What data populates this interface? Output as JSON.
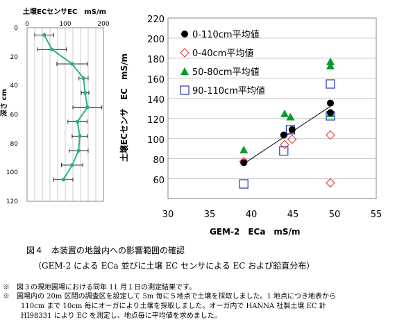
{
  "chart_data": [
    {
      "type": "line",
      "title": "土壌ECセンサEC　mS/m",
      "ylabel": "深さ cm",
      "x_ticks": [
        "0",
        "100",
        "200"
      ],
      "y_ticks": [
        "0",
        "20",
        "40",
        "60",
        "80",
        "100",
        "120"
      ],
      "xlim": [
        0,
        200
      ],
      "ylim": [
        0,
        120
      ],
      "y_inverted": true,
      "grid": "vertical",
      "series": [
        {
          "color": "#2db37a",
          "x": [
            45,
            65,
            118,
            148,
            152,
            158,
            132,
            138,
            135,
            118,
            95
          ],
          "y": [
            5,
            15,
            25,
            35,
            45,
            55,
            65,
            75,
            85,
            95,
            105
          ],
          "err": [
            25,
            38,
            40,
            12,
            10,
            38,
            25,
            20,
            25,
            28,
            25
          ]
        }
      ]
    },
    {
      "type": "scatter",
      "xlabel": "GEM-2　ECa　mS/m",
      "ylabel": "土壌ECセンサ　EC　mS/m",
      "x_ticks": [
        "30",
        "35",
        "40",
        "45",
        "50",
        "55"
      ],
      "y_ticks": [
        "60",
        "80",
        "100",
        "120",
        "140",
        "160",
        "180",
        "200",
        "220"
      ],
      "xlim": [
        30,
        55
      ],
      "ylim": [
        50,
        220
      ],
      "grid": "horizontal",
      "legend": "top-left",
      "series": [
        {
          "name": "0-110cm平均値",
          "marker": "circle",
          "color": "#000000",
          "x": [
            39.1,
            43.9,
            44.9,
            49.5,
            49.5
          ],
          "y": [
            84,
            110,
            115,
            140,
            131
          ]
        },
        {
          "name": "0-40cm平均値",
          "marker": "diamond",
          "color": "#e03030",
          "x": [
            39.1,
            44.0,
            44.9,
            49.5,
            49.5
          ],
          "y": [
            85,
            101,
            106,
            110,
            65
          ]
        },
        {
          "name": "50-80cm平均値",
          "marker": "triangle",
          "color": "#0a9a2a",
          "x": [
            39.1,
            44.0,
            44.7,
            49.5,
            49.5,
            49.5
          ],
          "y": [
            96,
            130,
            127,
            179,
            175,
            130
          ]
        },
        {
          "name": "90-110cm平均値",
          "marker": "square",
          "color": "#2233bb",
          "x": [
            39.1,
            43.9,
            44.7,
            49.5,
            49.5
          ],
          "y": [
            64,
            95,
            115,
            158,
            128
          ]
        }
      ],
      "trendline": {
        "color": "#000000",
        "x": [
          39.1,
          49.5
        ],
        "y": [
          83,
          137
        ]
      }
    }
  ],
  "caption": {
    "figure_title": "図４　本装置の地盤内への影響範囲の確認",
    "figure_subtitle": "（GEM-2 による ECa 並びに土壌 EC センサによる EC および鉛直分布）",
    "notes": [
      "※　図３の現地圃場における同年 11 月１日の測定結果です。",
      "※　圃場内の 20m 区間の調査区を設定して 5m 毎に５地点で土壌を採取しました。1 地点につき地表から",
      "110cm まで 10cm 毎にオーガにより土壌を採取しました。オーガ内で HANNA 社製土壌 EC 計",
      "HI98331 により EC を測定し、地点毎に平均値を求めました。"
    ]
  }
}
